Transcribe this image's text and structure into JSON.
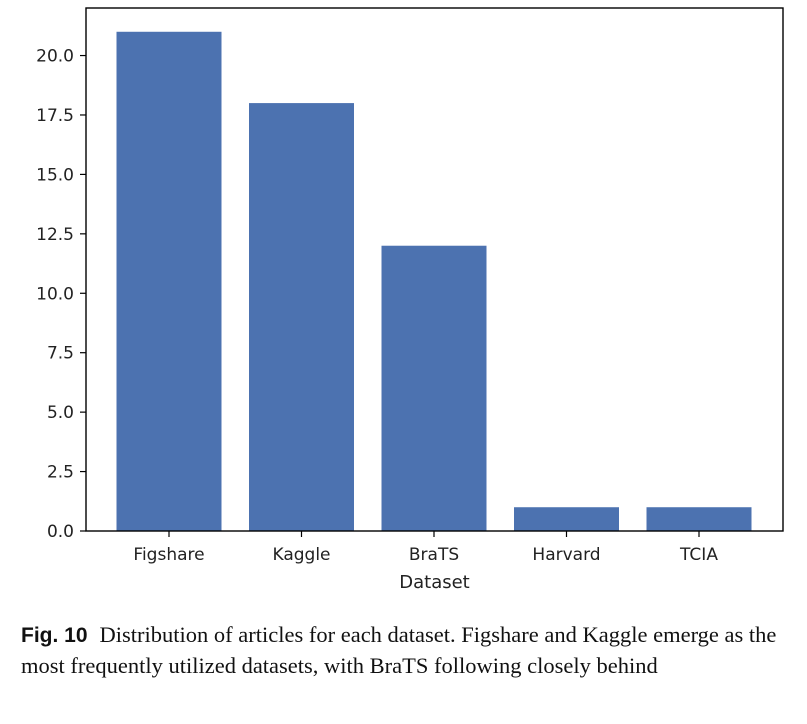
{
  "chart_data": {
    "type": "bar",
    "categories": [
      "Figshare",
      "Kaggle",
      "BraTS",
      "Harvard",
      "TCIA"
    ],
    "values": [
      21,
      18,
      12,
      1,
      1
    ],
    "title": "",
    "xlabel": "Dataset",
    "ylabel": "",
    "ylim": [
      0,
      22
    ],
    "yticks": [
      "0.0",
      "2.5",
      "5.0",
      "7.5",
      "10.0",
      "12.5",
      "15.0",
      "17.5",
      "20.0"
    ],
    "grid": false,
    "bar_color": "#4c72b0"
  },
  "caption": {
    "label": "Fig. 10",
    "text": "Distribution of articles for each dataset. Figshare and Kaggle emerge as the most frequently utilized datasets, with BraTS following closely behind"
  }
}
